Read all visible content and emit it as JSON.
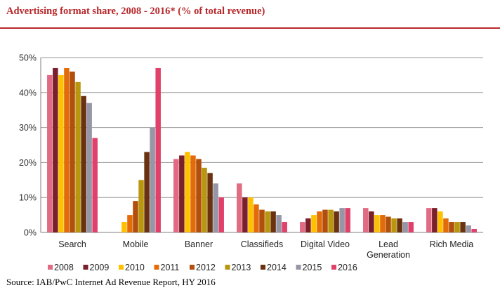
{
  "title": "Advertising format share, 2008 - 2016* (% of total revenue)",
  "source": "Source: IAB/PwC Internet Ad Revenue Report, HY 2016",
  "colors": {
    "title": "#b8282b",
    "series": [
      "#e06b83",
      "#7a1f2c",
      "#ffc000",
      "#e36c0a",
      "#b14f0d",
      "#b8960e",
      "#6a3210",
      "#9696a6",
      "#e0416a"
    ]
  },
  "chart_data": {
    "type": "bar",
    "title": "Advertising format share, 2008 - 2016* (% of total revenue)",
    "xlabel": "",
    "ylabel": "",
    "ylim": [
      0,
      50
    ],
    "yticks": [
      "0%",
      "10%",
      "20%",
      "30%",
      "40%",
      "50%"
    ],
    "grid": true,
    "legend": "bottom",
    "categories": [
      "Search",
      "Mobile",
      "Banner",
      "Classifieds",
      "Digital Video",
      "Lead Generation",
      "Rich Media"
    ],
    "category_lines": [
      [
        "Search"
      ],
      [
        "Mobile"
      ],
      [
        "Banner"
      ],
      [
        "Classifieds"
      ],
      [
        "Digital Video"
      ],
      [
        "Lead",
        "Generation"
      ],
      [
        "Rich Media"
      ]
    ],
    "series": [
      {
        "name": "2008",
        "values": [
          45,
          0,
          21,
          14,
          3,
          7,
          7
        ]
      },
      {
        "name": "2009",
        "values": [
          47,
          0,
          22,
          10,
          4,
          6,
          7
        ]
      },
      {
        "name": "2010",
        "values": [
          45,
          3,
          23,
          10,
          5,
          5,
          6
        ]
      },
      {
        "name": "2011",
        "values": [
          47,
          5,
          22,
          8,
          6,
          5,
          4
        ]
      },
      {
        "name": "2012",
        "values": [
          46,
          9,
          21,
          6.5,
          6.5,
          4.5,
          3
        ]
      },
      {
        "name": "2013",
        "values": [
          43,
          15,
          18.5,
          6,
          6.5,
          4,
          3
        ]
      },
      {
        "name": "2014",
        "values": [
          39,
          23,
          17,
          6,
          6,
          4,
          3
        ]
      },
      {
        "name": "2015",
        "values": [
          37,
          30,
          14,
          5,
          7,
          3,
          2
        ]
      },
      {
        "name": "2016",
        "values": [
          27,
          47,
          10,
          3,
          7,
          3,
          1
        ]
      }
    ]
  }
}
